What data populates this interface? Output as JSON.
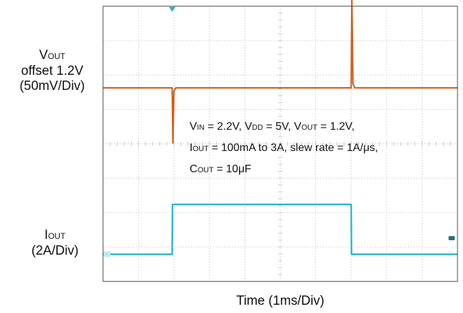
{
  "chart_data": {
    "type": "line",
    "title": "",
    "xlabel": "Time",
    "xscale": "(1ms/Div)",
    "x_divisions": 10,
    "y_divisions": 8,
    "grid": true,
    "x_unit": "ms",
    "ch1": {
      "label_main": "V",
      "label_sub": "OUT",
      "label_line2": "offset 1.2V",
      "label_line3": "(50mV/Div)",
      "color": "#d2601a",
      "baseline": 0,
      "points": [
        [
          0,
          0
        ],
        [
          1.95,
          0
        ],
        [
          1.97,
          -80
        ],
        [
          2.0,
          -5
        ],
        [
          2.05,
          0
        ],
        [
          7.0,
          0
        ],
        [
          7.02,
          130
        ],
        [
          7.05,
          6
        ],
        [
          7.1,
          0
        ],
        [
          10,
          0
        ]
      ]
    },
    "ch2": {
      "label_main": "I",
      "label_sub": "OUT",
      "label_line2": "(2A/Div)",
      "color": "#2bb5c8",
      "points": [
        [
          0,
          0.1
        ],
        [
          1.95,
          0.1
        ],
        [
          1.96,
          3.0
        ],
        [
          7.0,
          3.0
        ],
        [
          7.01,
          0.1
        ],
        [
          10,
          0.1
        ]
      ]
    },
    "annotations": {
      "l1": [
        {
          "t": "V"
        },
        {
          "s": "IN"
        },
        {
          "t": " = 2.2V, V"
        },
        {
          "s": "DD"
        },
        {
          "t": " = 5V, V"
        },
        {
          "s": "OUT"
        },
        {
          "t": " = 1.2V,"
        }
      ],
      "l2": [
        {
          "t": "I"
        },
        {
          "s": "OUT"
        },
        {
          "t": " = 100mA to 3A, slew rate = 1A/μs,"
        }
      ],
      "l3": [
        {
          "t": "C"
        },
        {
          "s": "OUT"
        },
        {
          "t": " = 10μF"
        }
      ]
    }
  }
}
